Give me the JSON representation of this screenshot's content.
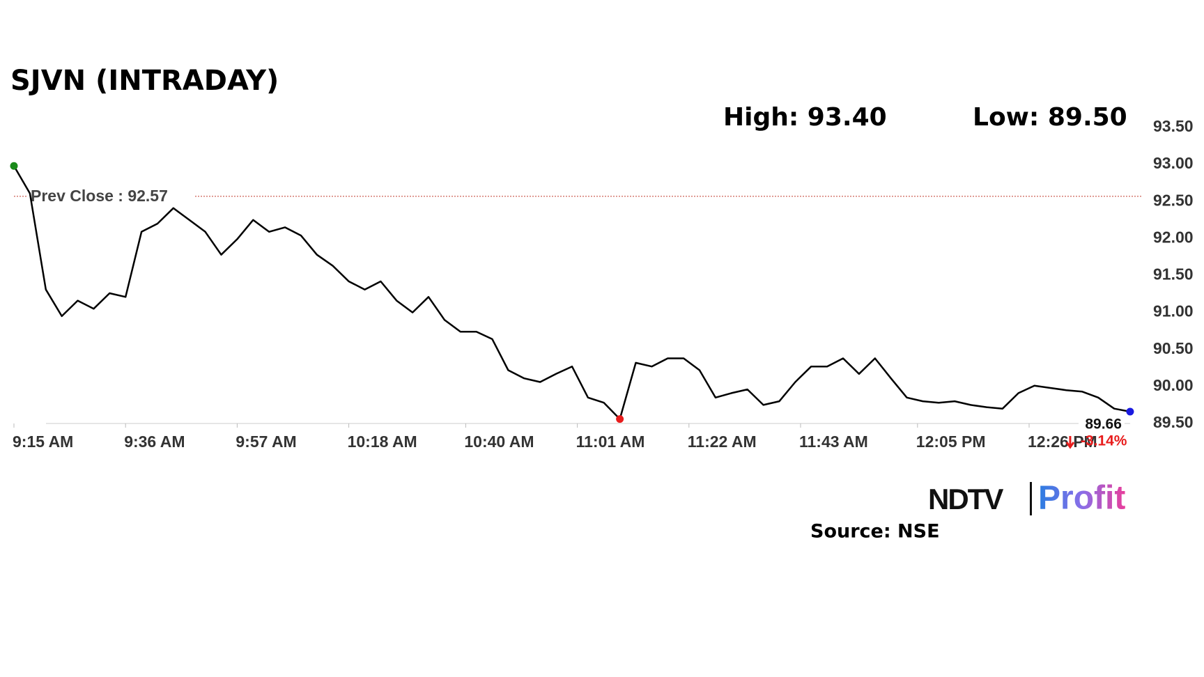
{
  "chart_data": {
    "type": "line",
    "title": "SJVN (INTRADAY)",
    "high_text": "High: 93.40",
    "low_text": "Low: 89.50",
    "prev_close_label": "Prev Close : 92.57",
    "prev_close": 92.57,
    "last_label": "89.66",
    "change_label": "-3.14%",
    "x": [
      "9:15 AM",
      "9:18 AM",
      "9:21 AM",
      "9:24 AM",
      "9:27 AM",
      "9:30 AM",
      "9:33 AM",
      "9:36 AM",
      "9:39 AM",
      "9:42 AM",
      "9:45 AM",
      "9:48 AM",
      "9:51 AM",
      "9:54 AM",
      "9:57 AM",
      "10:00 AM",
      "10:03 AM",
      "10:06 AM",
      "10:09 AM",
      "10:12 AM",
      "10:15 AM",
      "10:18 AM",
      "10:21 AM",
      "10:24 AM",
      "10:27 AM",
      "10:30 AM",
      "10:33 AM",
      "10:36 AM",
      "10:39 AM",
      "10:42 AM",
      "10:45 AM",
      "10:48 AM",
      "10:51 AM",
      "10:54 AM",
      "10:57 AM",
      "11:00 AM",
      "11:03 AM",
      "11:06 AM",
      "11:09 AM",
      "11:12 AM",
      "11:15 AM",
      "11:18 AM",
      "11:21 AM",
      "11:24 AM",
      "11:27 AM",
      "11:30 AM",
      "11:33 AM",
      "11:36 AM",
      "11:39 AM",
      "11:42 AM",
      "11:45 AM",
      "11:48 AM",
      "11:51 AM",
      "11:54 AM",
      "11:57 AM",
      "12:00 PM",
      "12:03 PM",
      "12:06 PM",
      "12:09 PM",
      "12:12 PM",
      "12:15 PM",
      "12:18 PM",
      "12:21 PM",
      "12:24 PM",
      "12:27 PM",
      "12:30 PM",
      "12:33 PM",
      "12:36 PM",
      "12:39 PM",
      "12:42 PM",
      "12:45 PM"
    ],
    "series": [
      {
        "name": "SJVN",
        "color": "#000000",
        "values": [
          92.98,
          92.61,
          91.31,
          90.95,
          91.16,
          91.05,
          91.26,
          91.21,
          92.09,
          92.2,
          92.41,
          92.25,
          92.09,
          91.78,
          91.99,
          92.25,
          92.09,
          92.15,
          92.04,
          91.78,
          91.63,
          91.42,
          91.31,
          91.42,
          91.16,
          91.0,
          91.21,
          90.9,
          90.74,
          90.74,
          90.64,
          90.22,
          90.11,
          90.06,
          90.17,
          90.27,
          89.85,
          89.78,
          89.56,
          90.32,
          90.27,
          90.38,
          90.38,
          90.22,
          89.85,
          89.91,
          89.96,
          89.75,
          89.8,
          90.06,
          90.27,
          90.27,
          90.38,
          90.17,
          90.38,
          90.11,
          89.85,
          89.8,
          89.78,
          89.8,
          89.75,
          89.72,
          89.7,
          89.91,
          90.01,
          89.98,
          89.95,
          89.93,
          89.85,
          89.7,
          89.66
        ]
      }
    ],
    "xlim": [
      "9:15 AM",
      "12:45 PM"
    ],
    "xticks": [
      "9:15 AM",
      "9:36 AM",
      "9:57 AM",
      "10:18 AM",
      "10:40 AM",
      "11:01 AM",
      "11:22 AM",
      "11:43 AM",
      "12:05 PM",
      "12:26 PM"
    ],
    "ylim": [
      89.5,
      93.5
    ],
    "yticks": [
      {
        "value": 89.5,
        "label": "89.50"
      },
      {
        "value": 90,
        "label": "90.00"
      },
      {
        "value": 90.5,
        "label": "90.50"
      },
      {
        "value": 91,
        "label": "91.00"
      },
      {
        "value": 91.5,
        "label": "91.50"
      },
      {
        "value": 92,
        "label": "92.00"
      },
      {
        "value": 92.5,
        "label": "92.50"
      },
      {
        "value": 93,
        "label": "93.00"
      },
      {
        "value": 93.5,
        "label": "93.50"
      }
    ]
  },
  "branding": {
    "logo_left": "NDTV",
    "logo_right": "Profit",
    "source": "Source: NSE"
  }
}
